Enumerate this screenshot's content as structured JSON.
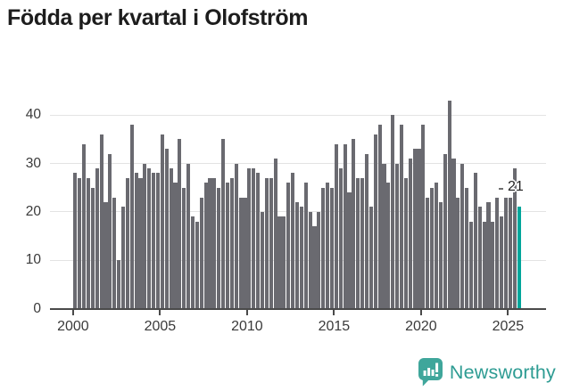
{
  "title": "Födda per kvartal i Olofström",
  "annotation": {
    "last_value_label": "21"
  },
  "branding": {
    "name": "Newsworthy",
    "icon": "newsworthy-speech-bubble-chart-icon"
  },
  "colors": {
    "bar": "#6A6A70",
    "highlight": "#00A69B",
    "grid": "#E3E3E3",
    "axis": "#4A4A4A",
    "title": "#1D1D1D",
    "tick_label": "#3A3A3A",
    "logo": "#2E9C93"
  },
  "chart_data": {
    "type": "bar",
    "title": "Födda per kvartal i Olofström",
    "x_unit": "quarter",
    "x_start": "2000 Q1",
    "x_end": "2025 Q3",
    "x_tick_labels": [
      "2000",
      "2005",
      "2010",
      "2015",
      "2020",
      "2025"
    ],
    "y_ticks": [
      0,
      10,
      20,
      30,
      40
    ],
    "ylim": [
      0,
      45
    ],
    "grid": "horizontal",
    "legend": "none",
    "values": [
      28,
      27,
      34,
      27,
      25,
      29,
      36,
      22,
      32,
      23,
      10,
      21,
      27,
      38,
      28,
      27,
      30,
      29,
      28,
      28,
      36,
      33,
      29,
      26,
      35,
      25,
      30,
      19,
      18,
      23,
      26,
      27,
      27,
      25,
      35,
      26,
      27,
      30,
      23,
      23,
      29,
      29,
      28,
      20,
      27,
      27,
      31,
      19,
      19,
      26,
      28,
      22,
      21,
      26,
      20,
      17,
      20,
      25,
      26,
      25,
      34,
      29,
      34,
      24,
      35,
      27,
      27,
      32,
      21,
      36,
      38,
      30,
      26,
      40,
      30,
      38,
      27,
      31,
      33,
      33,
      38,
      23,
      25,
      26,
      22,
      32,
      43,
      31,
      23,
      30,
      25,
      18,
      28,
      21,
      18,
      22,
      18,
      23,
      19,
      23,
      23,
      29,
      21
    ],
    "highlight_last_bar": {
      "quarter": "2025 Q3",
      "value": 21,
      "color": "#00A69B",
      "label": "21"
    }
  }
}
